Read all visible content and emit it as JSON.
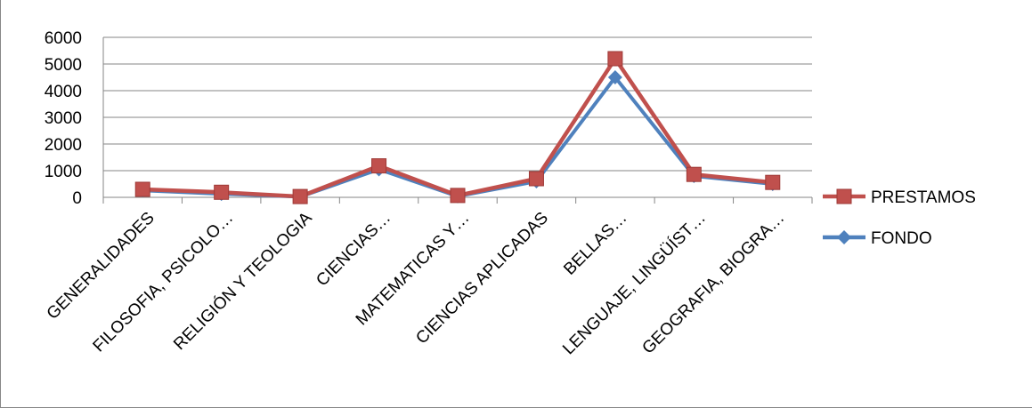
{
  "chart_data": {
    "type": "line",
    "categories": [
      "GENERALIDADES",
      "FILOSOFIA, PSICOLO…",
      "RELIGIÓN Y TEOLOGIA",
      "CIENCIAS…",
      "MATEMATICAS Y…",
      "CIENCIAS APLICADAS",
      "BELLAS…",
      "LENGUAJE, LINGÜÍST…",
      "GEOGRAFIA, BIOGRA…"
    ],
    "series": [
      {
        "name": "PRESTAMOS",
        "color": "#C0504D",
        "marker": "square",
        "values": [
          300,
          190,
          30,
          1180,
          70,
          700,
          5200,
          860,
          560
        ]
      },
      {
        "name": "FONDO",
        "color": "#4F81BD",
        "marker": "diamond",
        "values": [
          260,
          130,
          20,
          1050,
          40,
          600,
          4500,
          800,
          500
        ]
      }
    ],
    "yticks": [
      "0",
      "1000",
      "2000",
      "3000",
      "4000",
      "5000",
      "6000"
    ],
    "ylim": [
      0,
      6000
    ],
    "grid": true,
    "legend": "right"
  }
}
